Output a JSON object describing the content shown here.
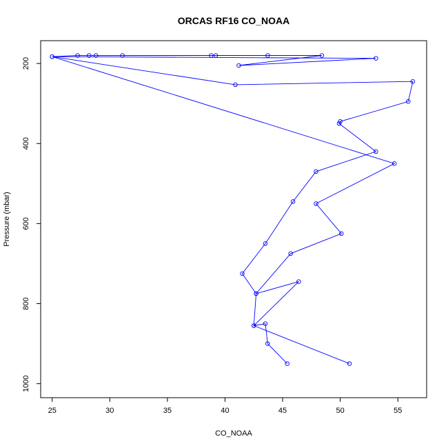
{
  "colors": {
    "series": "#0000ff",
    "axis": "#000000",
    "background": "#ffffff"
  },
  "chart_data": {
    "type": "line",
    "title": "ORCAS RF16 CO_NOAA",
    "xlabel": "CO_NOAA",
    "ylabel": "Pressure (mbar)",
    "xlim": [
      24,
      57.5
    ],
    "ylim": [
      1035,
      143
    ],
    "y_reversed": true,
    "x_ticks": [
      25,
      30,
      35,
      40,
      45,
      50,
      55
    ],
    "x_tick_labels": [
      "25",
      "30",
      "35",
      "40",
      "45",
      "50",
      "55"
    ],
    "y_ticks": [
      200,
      400,
      600,
      800,
      1000
    ],
    "y_tick_labels": [
      "200",
      "400",
      "600",
      "800",
      "1000"
    ],
    "grid": false,
    "legend": "none",
    "markers": "open-circle",
    "series": [
      {
        "points": [
          [
            45.4,
            950
          ],
          [
            43.7,
            900
          ],
          [
            43.5,
            850
          ],
          [
            42.5,
            855
          ],
          [
            46.4,
            745
          ],
          [
            42.7,
            775
          ],
          [
            41.5,
            725
          ],
          [
            43.5,
            650
          ],
          [
            45.9,
            545
          ],
          [
            47.9,
            470
          ],
          [
            53.1,
            420
          ],
          [
            49.9,
            350
          ],
          [
            50.0,
            345
          ],
          [
            55.9,
            295
          ],
          [
            56.3,
            245
          ],
          [
            40.9,
            253
          ],
          [
            25.0,
            183
          ],
          [
            53.1,
            187
          ],
          [
            41.2,
            205
          ],
          [
            48.4,
            180
          ],
          [
            43.7,
            180
          ],
          [
            39.2,
            180
          ],
          [
            38.8,
            180
          ],
          [
            31.1,
            180
          ],
          [
            28.8,
            180
          ],
          [
            28.2,
            180
          ],
          [
            27.2,
            180
          ],
          [
            25.0,
            183
          ],
          [
            54.7,
            450
          ],
          [
            47.9,
            550
          ],
          [
            50.1,
            625
          ],
          [
            45.7,
            675
          ],
          [
            42.7,
            775
          ],
          [
            42.5,
            855
          ],
          [
            50.8,
            950
          ]
        ]
      }
    ]
  }
}
